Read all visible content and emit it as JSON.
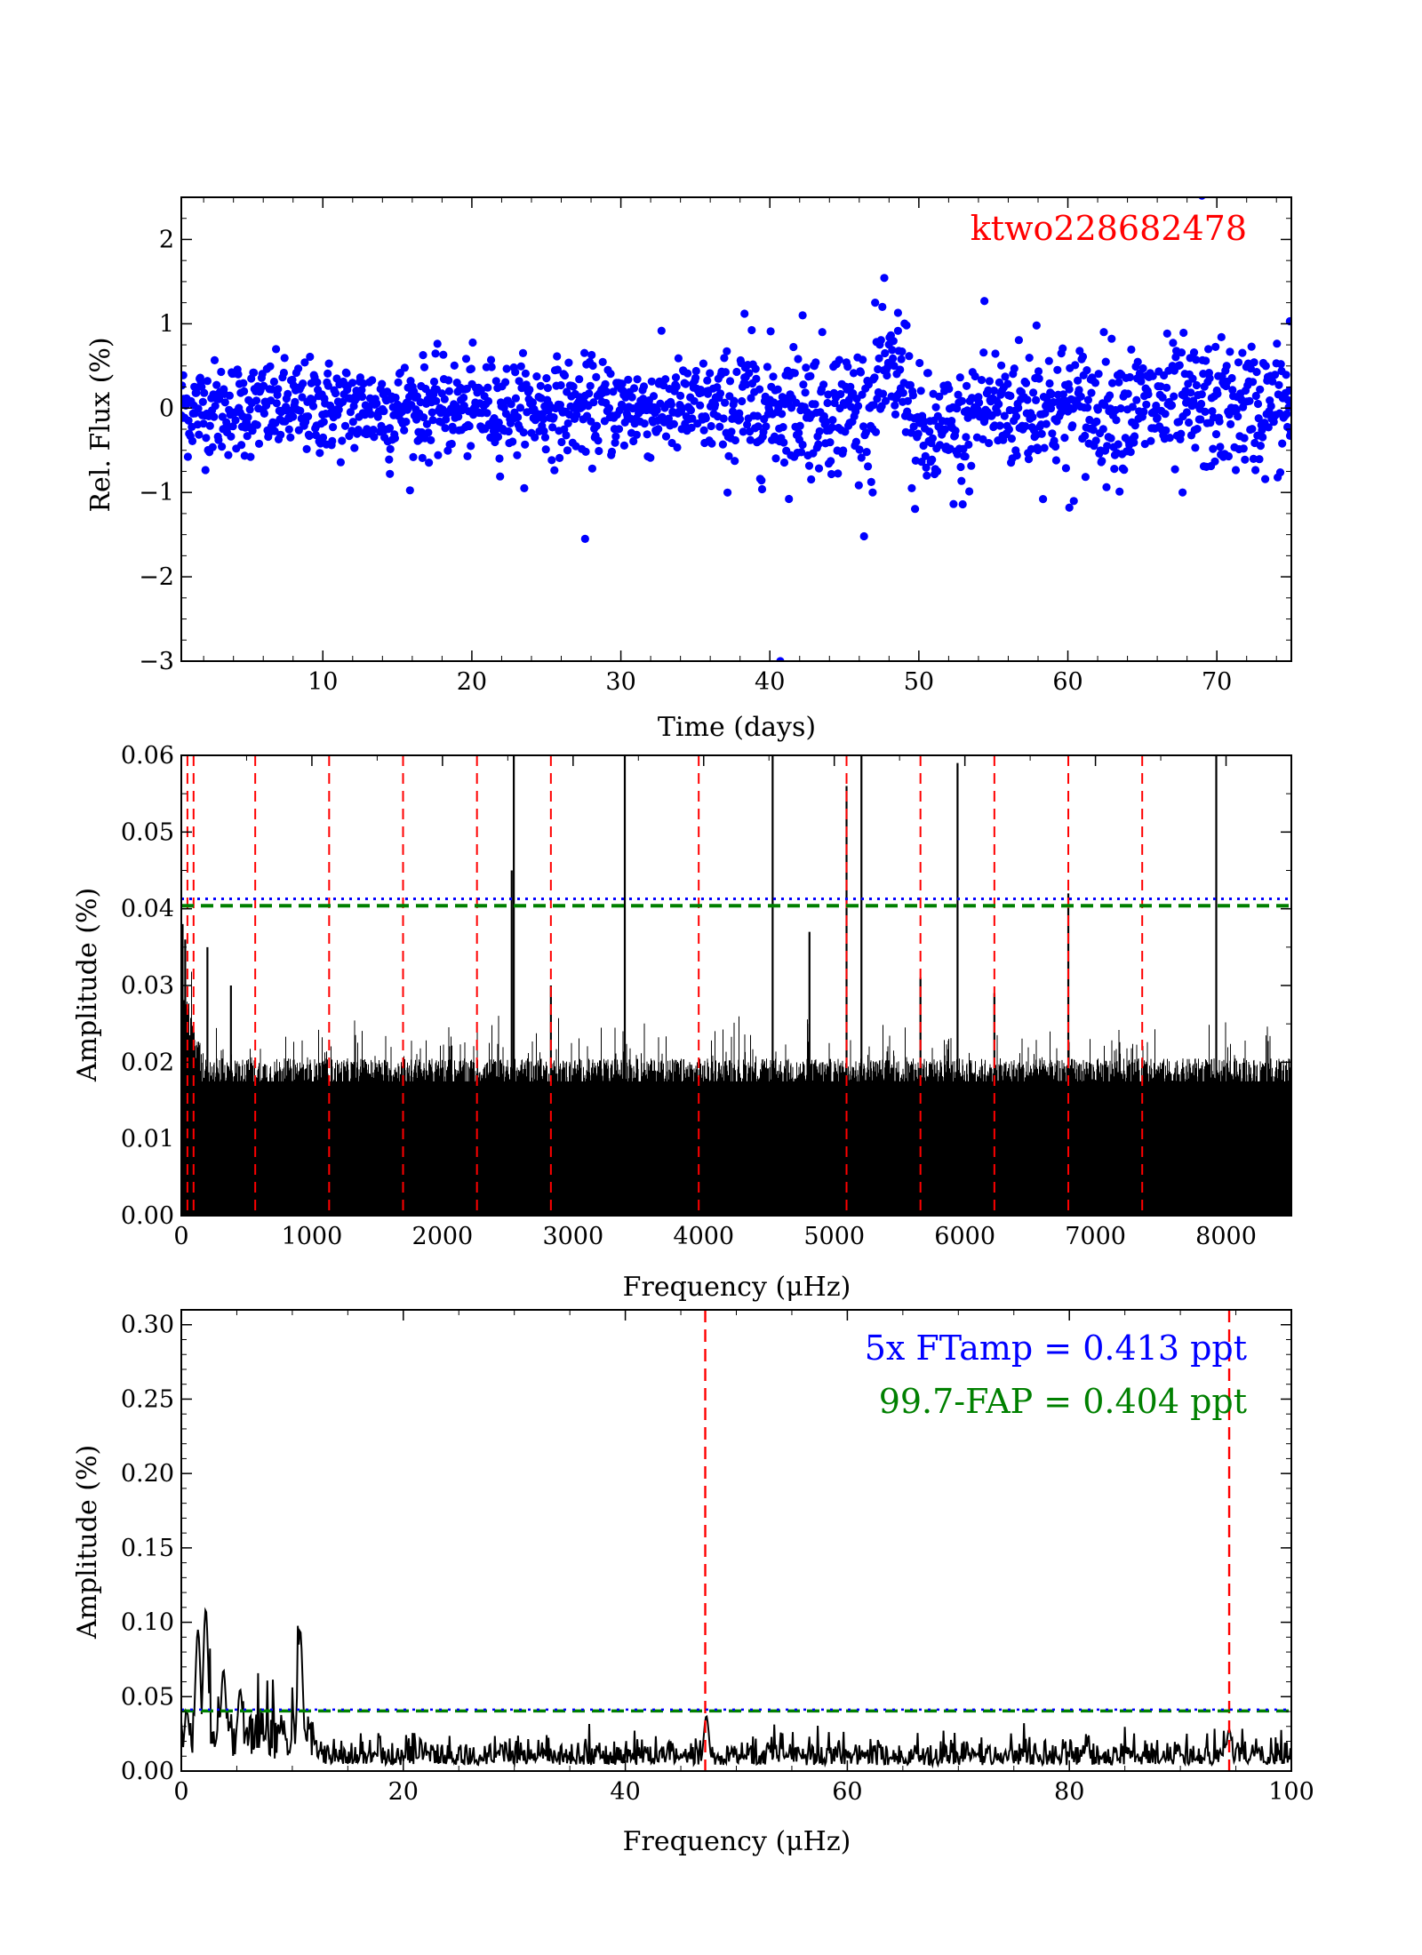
{
  "chart_data": [
    {
      "id": "lightcurve",
      "type": "scatter",
      "xlabel": "Time (days)",
      "ylabel": "Rel. Flux (%)",
      "xlim": [
        0.5,
        75
      ],
      "ylim": [
        -3,
        2.5
      ],
      "xticks": [
        10,
        20,
        30,
        40,
        50,
        60,
        70
      ],
      "yticks": [
        -3,
        -2,
        -1,
        0,
        1,
        2
      ],
      "ytick_labels": [
        "−3",
        "−2",
        "−1",
        "0",
        "1",
        "2"
      ],
      "marker_color": "#0000ff",
      "annotation": "ktwo228682478",
      "annotation_color": "#ff0000",
      "noise_sigma": 0.28,
      "outliers": [
        [
          27.6,
          -1.55
        ],
        [
          40.7,
          -3.0
        ],
        [
          69.0,
          2.52
        ],
        [
          38.3,
          1.12
        ],
        [
          42.2,
          1.1
        ],
        [
          48.6,
          1.13
        ],
        [
          54.4,
          1.27
        ],
        [
          60.1,
          -1.18
        ],
        [
          57.9,
          0.98
        ],
        [
          74.9,
          1.03
        ],
        [
          14.5,
          -0.78
        ],
        [
          46.9,
          -1.0
        ],
        [
          67.7,
          -1.0
        ]
      ]
    },
    {
      "id": "full-spectrum",
      "type": "line",
      "xlabel": "Frequency (μHz)",
      "ylabel": "Amplitude (%)",
      "xlim": [
        0,
        8500
      ],
      "ylim": [
        0,
        0.06
      ],
      "xticks": [
        0,
        1000,
        2000,
        3000,
        4000,
        5000,
        6000,
        7000,
        8000
      ],
      "yticks": [
        0.0,
        0.01,
        0.02,
        0.03,
        0.04,
        0.05,
        0.06
      ],
      "ytick_labels": [
        "0.00",
        "0.01",
        "0.02",
        "0.03",
        "0.04",
        "0.05",
        "0.06"
      ],
      "line_color": "#000000",
      "threshold_5x": 0.0413,
      "threshold_5x_color": "#0000ff",
      "threshold_fap": 0.0404,
      "threshold_fap_color": "#008000",
      "harmonic_lines_x": [
        47,
        94,
        566,
        1132,
        1698,
        2264,
        2830,
        3962,
        5094,
        5660,
        6226,
        6792,
        7358
      ],
      "harmonic_color": "#ff0000",
      "peaks": [
        {
          "x": 2546,
          "y": 0.06
        },
        {
          "x": 3396,
          "y": 0.06
        },
        {
          "x": 4528,
          "y": 0.06
        },
        {
          "x": 5208,
          "y": 0.06
        },
        {
          "x": 7925,
          "y": 0.06
        },
        {
          "x": 5094,
          "y": 0.056
        },
        {
          "x": 5944,
          "y": 0.059
        },
        {
          "x": 6792,
          "y": 0.042
        },
        {
          "x": 2530,
          "y": 0.045
        },
        {
          "x": 4810,
          "y": 0.037
        },
        {
          "x": 5660,
          "y": 0.031
        },
        {
          "x": 2830,
          "y": 0.03
        },
        {
          "x": 6226,
          "y": 0.029
        },
        {
          "x": 10,
          "y": 0.038
        },
        {
          "x": 30,
          "y": 0.036
        },
        {
          "x": 200,
          "y": 0.035
        },
        {
          "x": 380,
          "y": 0.03
        }
      ]
    },
    {
      "id": "low-frequency",
      "type": "line",
      "xlabel": "Frequency (μHz)",
      "ylabel": "Amplitude (%)",
      "xlim": [
        0,
        100
      ],
      "ylim": [
        0,
        0.31
      ],
      "xticks": [
        0,
        20,
        40,
        60,
        80,
        100
      ],
      "yticks": [
        0.0,
        0.05,
        0.1,
        0.15,
        0.2,
        0.25,
        0.3
      ],
      "ytick_labels": [
        "0.00",
        "0.05",
        "0.10",
        "0.15",
        "0.20",
        "0.25",
        "0.30"
      ],
      "line_color": "#000000",
      "threshold_5x": 0.0413,
      "threshold_5x_color": "#0000ff",
      "threshold_fap": 0.0404,
      "threshold_fap_color": "#008000",
      "harmonic_lines_x": [
        47.2,
        94.4
      ],
      "harmonic_color": "#ff0000",
      "peaks": [
        {
          "x": 1.5,
          "y": 0.095
        },
        {
          "x": 2.2,
          "y": 0.109
        },
        {
          "x": 3.8,
          "y": 0.068
        },
        {
          "x": 5.3,
          "y": 0.055
        },
        {
          "x": 10.7,
          "y": 0.095
        },
        {
          "x": 0.5,
          "y": 0.04
        },
        {
          "x": 47.3,
          "y": 0.037
        },
        {
          "x": 94.4,
          "y": 0.028
        }
      ],
      "legend": [
        {
          "text": "5x FTamp = 0.413 ppt",
          "color": "#0000ff"
        },
        {
          "text": "99.7-FAP = 0.404 ppt",
          "color": "#008000"
        }
      ]
    }
  ]
}
